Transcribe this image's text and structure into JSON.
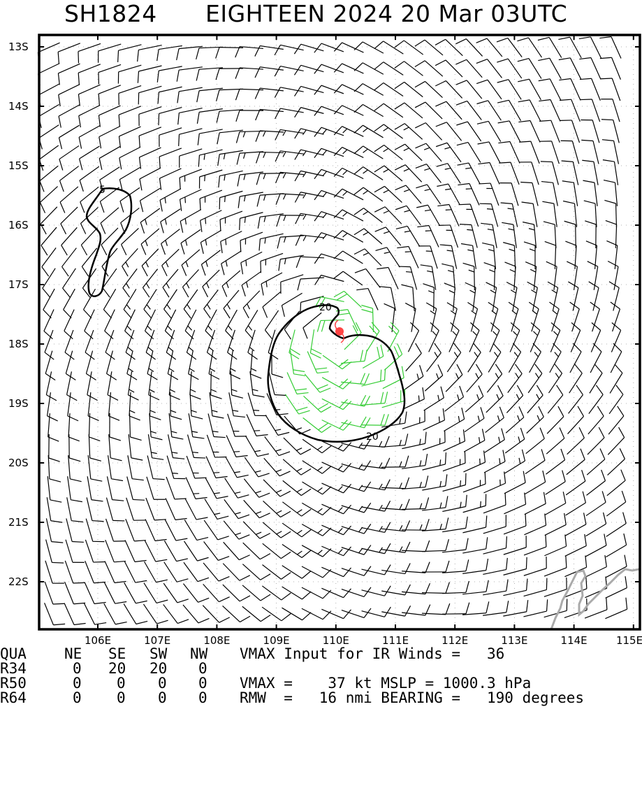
{
  "title": {
    "storm_id": "SH1824",
    "storm_name_time": "EIGHTEEN 2024 20 Mar 03UTC"
  },
  "map": {
    "lat_range": [
      "13S",
      "22S"
    ],
    "lon_range": [
      "106E",
      "115E"
    ],
    "lat_labels": [
      "13S",
      "14S",
      "15S",
      "16S",
      "17S",
      "18S",
      "19S",
      "20S",
      "21S",
      "22S"
    ],
    "lon_labels": [
      "106E",
      "107E",
      "108E",
      "109E",
      "110E",
      "111E",
      "112E",
      "113E",
      "114E",
      "115E"
    ],
    "contours": [
      {
        "label": "5",
        "color": "#000000"
      },
      {
        "label": "20",
        "color": "#000000"
      },
      {
        "label": "20",
        "color": "#000000"
      }
    ],
    "storm_center": {
      "lat": -17.85,
      "lon": 110.05,
      "color": "#ff4444",
      "icon": "tropical-cyclone-icon"
    },
    "barb_colors": {
      "normal": "#000000",
      "gale": "#33cc33"
    },
    "coastline_color": "#aaaaaa"
  },
  "table": {
    "header": {
      "c0": "QUA",
      "c1": "NE",
      "c2": "SE",
      "c3": "SW",
      "c4": "NW",
      "extra": "VMAX Input for IR Winds =   36"
    },
    "r34": {
      "c0": "R34",
      "c1": "0",
      "c2": "20",
      "c3": "20",
      "c4": "0",
      "extra": ""
    },
    "r50": {
      "c0": "R50",
      "c1": "0",
      "c2": "0",
      "c3": "0",
      "c4": "0",
      "extra": "VMAX =    37 kt MSLP = 1000.3 hPa"
    },
    "r64": {
      "c0": "R64",
      "c1": "0",
      "c2": "0",
      "c3": "0",
      "c4": "0",
      "extra": "RMW  =   16 nmi BEARING =   190 degrees"
    }
  }
}
